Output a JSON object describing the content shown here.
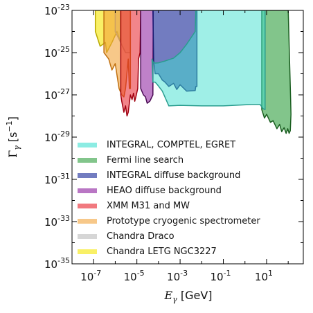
{
  "chart_data": {
    "type": "area",
    "xlabel": {
      "symbol": "E",
      "sub": "γ",
      "unit": "[GeV]"
    },
    "ylabel": {
      "symbol": "Γ",
      "sub": "γ",
      "unit": "[s",
      "unit_exp": "−1",
      "unit_close": "]"
    },
    "x_scale": "log",
    "y_scale": "log",
    "xlim": [
      1e-08,
      500
    ],
    "ylim": [
      1e-35,
      1e-23
    ],
    "x_ticks": [
      {
        "value": 1e-07,
        "base": "10",
        "exp": "-7"
      },
      {
        "value": 1e-05,
        "base": "10",
        "exp": "-5"
      },
      {
        "value": 0.001,
        "base": "10",
        "exp": "-3"
      },
      {
        "value": 0.1,
        "base": "10",
        "exp": "-1"
      },
      {
        "value": 10,
        "base": "10",
        "exp": "1"
      }
    ],
    "y_ticks": [
      {
        "value": 1e-23,
        "base": "10",
        "exp": "-23"
      },
      {
        "value": 1e-25,
        "base": "10",
        "exp": "-25"
      },
      {
        "value": 1e-27,
        "base": "10",
        "exp": "-27"
      },
      {
        "value": 1e-29,
        "base": "10",
        "exp": "-29"
      },
      {
        "value": 1e-31,
        "base": "10",
        "exp": "-31"
      },
      {
        "value": 1e-33,
        "base": "10",
        "exp": "-33"
      },
      {
        "value": 1e-35,
        "base": "10",
        "exp": "-35"
      }
    ],
    "grid": false,
    "legend_position": "lower-center",
    "series": [
      {
        "name": "INTEGRAL, COMPTEL, EGRET",
        "color": "#40e0d0",
        "edge": "#2a9d8f",
        "alpha": 0.5,
        "points": [
          [
            5e-05,
            5e-26
          ],
          [
            5.7e-05,
            3.5e-26
          ],
          [
            7e-05,
            3.2e-26
          ],
          [
            0.0001,
            3.3e-26
          ],
          [
            0.0002,
            4e-26
          ],
          [
            0.0005,
            5.5e-26
          ],
          [
            0.001,
            1e-25
          ],
          [
            0.002,
            2.5e-25
          ],
          [
            0.005,
            1e-24
          ],
          [
            0.0053,
            1e-23
          ],
          [
            8.5,
            1e-23
          ],
          [
            8.5,
            2e-28
          ],
          [
            7,
            2.2e-28
          ],
          [
            5,
            3.5e-28
          ],
          [
            2,
            3.5e-28
          ],
          [
            0.1,
            3e-28
          ],
          [
            0.01,
            3e-28
          ],
          [
            0.001,
            3.2e-28
          ],
          [
            0.0003,
            3e-28
          ],
          [
            0.00015,
            1.5e-27
          ],
          [
            9e-05,
            3e-27
          ],
          [
            7e-05,
            4e-27
          ],
          [
            5.5e-05,
            4e-27
          ],
          [
            5e-05,
            5e-26
          ]
        ]
      },
      {
        "name": "Fermi line search",
        "color": "#2e9e3e",
        "edge": "#1a5e20",
        "alpha": 0.6,
        "points": [
          [
            6,
            1e-23
          ],
          [
            100,
            1e-23
          ],
          [
            130,
            6e-28
          ],
          [
            135,
            1.2e-28
          ],
          [
            125,
            2e-29
          ],
          [
            110,
            1.5e-29
          ],
          [
            95,
            2.5e-29
          ],
          [
            80,
            1.5e-29
          ],
          [
            65,
            2.8e-29
          ],
          [
            50,
            1.8e-29
          ],
          [
            40,
            4e-29
          ],
          [
            30,
            2.5e-29
          ],
          [
            20,
            6e-29
          ],
          [
            15,
            5e-29
          ],
          [
            10,
            1.2e-28
          ],
          [
            8,
            8e-29
          ],
          [
            6,
            2e-28
          ],
          [
            6,
            1e-23
          ]
        ]
      },
      {
        "name": "INTEGRAL diffuse background",
        "color": "#27359e",
        "edge": "#1a1a70",
        "alpha": 0.65,
        "points": [
          [
            5.5e-05,
            1e-23
          ],
          [
            0.006,
            1e-23
          ],
          [
            0.006,
            2.5e-27
          ],
          [
            0.0053,
            2.5e-27
          ],
          [
            0.005,
            1.6e-27
          ],
          [
            0.002,
            1.5e-27
          ],
          [
            0.001,
            3e-27
          ],
          [
            0.0007,
            1.8e-27
          ],
          [
            0.0005,
            3.5e-27
          ],
          [
            0.0003,
            2.5e-27
          ],
          [
            0.0002,
            4e-27
          ],
          [
            0.00015,
            5e-27
          ],
          [
            0.0001,
            1e-26
          ],
          [
            7e-05,
            1e-26
          ],
          [
            6e-05,
            4e-26
          ],
          [
            5.5e-05,
            1e-23
          ]
        ]
      },
      {
        "name": "HEAO diffuse background",
        "color": "#8b1a9c",
        "edge": "#4a0a54",
        "alpha": 0.55,
        "points": [
          [
            1.5e-05,
            1e-23
          ],
          [
            5.7e-05,
            1e-23
          ],
          [
            5.5e-05,
            1e-27
          ],
          [
            4e-05,
            5e-28
          ],
          [
            3e-05,
            4e-28
          ],
          [
            2.5e-05,
            8e-28
          ],
          [
            2e-05,
            1e-27
          ],
          [
            1.5e-05,
            2e-27
          ],
          [
            1.5e-05,
            1e-23
          ]
        ]
      },
      {
        "name": "XMM M31 and MW",
        "color": "#e8202a",
        "edge": "#a00010",
        "alpha": 0.55,
        "points": [
          [
            1.8e-06,
            1e-23
          ],
          [
            1.5e-05,
            1e-23
          ],
          [
            1.4e-05,
            1e-25
          ],
          [
            1.2e-05,
            5e-26
          ],
          [
            1.1e-05,
            2e-27
          ],
          [
            9e-06,
            8e-28
          ],
          [
            8e-06,
            5e-28
          ],
          [
            7e-06,
            1.2e-27
          ],
          [
            6e-06,
            6e-28
          ],
          [
            5e-06,
            1e-27
          ],
          [
            4e-06,
            1.5e-28
          ],
          [
            3.5e-06,
            1e-28
          ],
          [
            3e-06,
            3e-28
          ],
          [
            2.5e-06,
            1.5e-28
          ],
          [
            2e-06,
            5e-28
          ],
          [
            1.8e-06,
            1e-27
          ],
          [
            1.8e-06,
            1e-23
          ]
        ]
      },
      {
        "name": "Prototype cryogenic spectrometer",
        "color": "#f2a33a",
        "edge": "#c07010",
        "alpha": 0.6,
        "points": [
          [
            3e-07,
            1e-23
          ],
          [
            5e-06,
            1e-23
          ],
          [
            5e-06,
            2e-27
          ],
          [
            4.5e-06,
            2e-27
          ],
          [
            4e-06,
            5e-26
          ],
          [
            3e-06,
            2e-27
          ],
          [
            2.5e-06,
            8e-28
          ],
          [
            2e-06,
            1e-27
          ],
          [
            1.5e-06,
            2e-27
          ],
          [
            1e-06,
            3e-26
          ],
          [
            7e-07,
            1.5e-26
          ],
          [
            5e-07,
            5e-26
          ],
          [
            3e-07,
            1e-25
          ],
          [
            3e-07,
            1e-23
          ]
        ]
      },
      {
        "name": "Chandra Draco",
        "color": "#bbbbbb",
        "edge": "#999999",
        "alpha": 0.3,
        "points": [
          [
            1e-06,
            1e-23
          ],
          [
            5e-06,
            1e-23
          ],
          [
            5e-06,
            1e-25
          ],
          [
            3e-06,
            1e-25
          ],
          [
            1e-06,
            1e-24
          ],
          [
            1e-06,
            1e-23
          ]
        ]
      },
      {
        "name": "Chandra LETG NGC3227",
        "color": "#f5e600",
        "edge": "#b8a800",
        "alpha": 0.6,
        "points": [
          [
            1.2e-07,
            1e-23
          ],
          [
            1.8e-06,
            1e-23
          ],
          [
            1.8e-06,
            3e-25
          ],
          [
            1.2e-06,
            1e-24
          ],
          [
            7e-07,
            3e-25
          ],
          [
            4e-07,
            1e-25
          ],
          [
            3.5e-07,
            3e-25
          ],
          [
            2e-07,
            2e-25
          ],
          [
            1.5e-07,
            5e-25
          ],
          [
            1.2e-07,
            1e-24
          ],
          [
            1.2e-07,
            1e-23
          ]
        ]
      }
    ]
  }
}
